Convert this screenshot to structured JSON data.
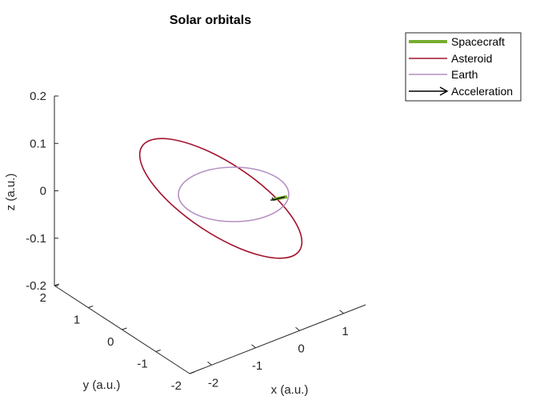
{
  "chart_data": {
    "type": "line3d",
    "title": "Solar orbitals",
    "xlabel": "x (a.u.)",
    "ylabel": "y (a.u.)",
    "zlabel": "z (a.u.)",
    "xlim": [
      -2.5,
      1.5
    ],
    "ylim": [
      -2,
      2
    ],
    "zlim": [
      -0.2,
      0.2
    ],
    "x_ticks": [
      "-2",
      "-1",
      "0",
      "1"
    ],
    "y_ticks": [
      "-2",
      "-1",
      "0",
      "1",
      "2"
    ],
    "z_ticks": [
      "-0.2",
      "-0.1",
      "0",
      "0.1",
      "0.2"
    ],
    "grid": false,
    "legend_position": "top-right",
    "series": [
      {
        "name": "Spacecraft",
        "color": "#77ac30",
        "kind": "trajectory",
        "x": [
          0.94,
          0.97,
          1.0
        ],
        "y": [
          0.3,
          0.2,
          0.1
        ],
        "z": [
          0.0,
          0.0,
          0.0
        ]
      },
      {
        "name": "Asteroid",
        "color": "#a2142f",
        "kind": "ellipse",
        "a": 1.8,
        "e": 0.55,
        "inclination_deg": 4
      },
      {
        "name": "Earth",
        "color": "#b48fc2",
        "kind": "circle",
        "radius": 1.0
      },
      {
        "name": "Acceleration",
        "color": "#000000",
        "kind": "arrow"
      }
    ]
  }
}
